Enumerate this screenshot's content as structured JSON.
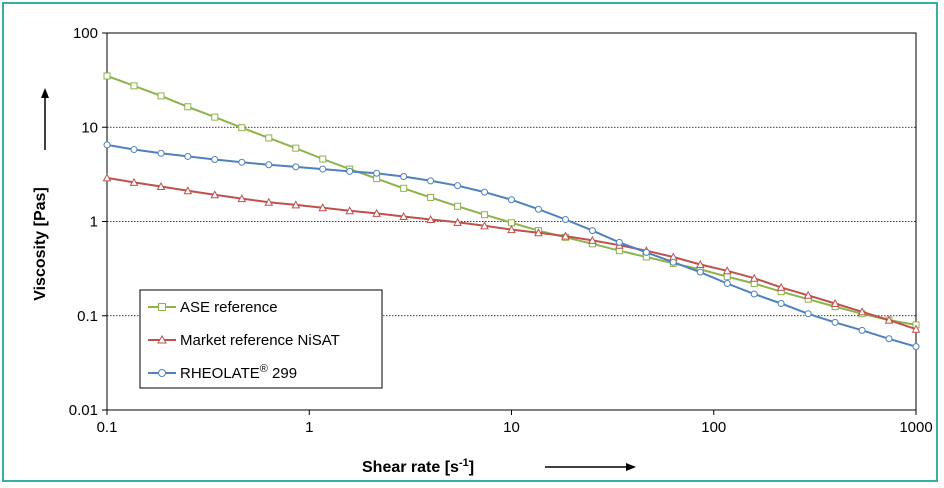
{
  "chart_data": {
    "type": "line",
    "xlabel": "Shear rate [s",
    "xlabel_sup": "-1",
    "xlabel_close": "]",
    "ylabel": "Viscosity [Pas]",
    "x_scale": "log",
    "y_scale": "log",
    "xlim": [
      0.1,
      1000
    ],
    "ylim": [
      0.01,
      100
    ],
    "x_ticks": [
      "0.1",
      "1",
      "10",
      "100",
      "1000"
    ],
    "y_ticks": [
      "100",
      "10",
      "1",
      "0.1",
      "0.01"
    ],
    "grid": "horizontal dotted at 10, 1, 0.1",
    "legend_position": "bottom-left",
    "series": [
      {
        "name": "ASE reference",
        "color": "#8db34b",
        "marker": "square",
        "x": [
          0.1,
          0.136,
          0.185,
          0.251,
          0.341,
          0.464,
          0.631,
          0.858,
          1.166,
          1.585,
          2.154,
          2.929,
          3.981,
          5.412,
          7.356,
          10.0,
          13.59,
          18.48,
          25.12,
          34.15,
          46.42,
          63.1,
          85.77,
          116.6,
          158.5,
          215.4,
          292.9,
          398.1,
          541.2,
          735.6,
          1000
        ],
        "y": [
          35,
          27.5,
          21.5,
          16.5,
          12.8,
          9.9,
          7.7,
          6.0,
          4.6,
          3.6,
          2.85,
          2.25,
          1.8,
          1.45,
          1.18,
          0.97,
          0.8,
          0.68,
          0.58,
          0.49,
          0.42,
          0.36,
          0.31,
          0.26,
          0.22,
          0.18,
          0.15,
          0.125,
          0.105,
          0.09,
          0.08
        ]
      },
      {
        "name": "Market reference NiSAT",
        "color": "#c0504d",
        "marker": "triangle",
        "x": [
          0.1,
          0.136,
          0.185,
          0.251,
          0.341,
          0.464,
          0.631,
          0.858,
          1.166,
          1.585,
          2.154,
          2.929,
          3.981,
          5.412,
          7.356,
          10.0,
          13.59,
          18.48,
          25.12,
          34.15,
          46.42,
          63.1,
          85.77,
          116.6,
          158.5,
          215.4,
          292.9,
          398.1,
          541.2,
          735.6,
          1000
        ],
        "y": [
          2.9,
          2.6,
          2.35,
          2.12,
          1.92,
          1.75,
          1.6,
          1.5,
          1.4,
          1.3,
          1.22,
          1.13,
          1.05,
          0.98,
          0.9,
          0.82,
          0.76,
          0.7,
          0.63,
          0.56,
          0.49,
          0.42,
          0.35,
          0.3,
          0.25,
          0.2,
          0.165,
          0.135,
          0.11,
          0.09,
          0.072
        ]
      },
      {
        "name": "RHEOLATE® 299",
        "name_main": "RHEOLATE",
        "name_sup": "®",
        "name_rest": " 299",
        "color": "#4f81bd",
        "marker": "circle",
        "x": [
          0.1,
          0.136,
          0.185,
          0.251,
          0.341,
          0.464,
          0.631,
          0.858,
          1.166,
          1.585,
          2.154,
          2.929,
          3.981,
          5.412,
          7.356,
          10.0,
          13.59,
          18.48,
          25.12,
          34.15,
          46.42,
          63.1,
          85.77,
          116.6,
          158.5,
          215.4,
          292.9,
          398.1,
          541.2,
          735.6,
          1000
        ],
        "y": [
          6.5,
          5.8,
          5.3,
          4.9,
          4.55,
          4.25,
          4.0,
          3.8,
          3.6,
          3.4,
          3.25,
          3.0,
          2.7,
          2.4,
          2.05,
          1.7,
          1.35,
          1.05,
          0.8,
          0.6,
          0.47,
          0.37,
          0.29,
          0.22,
          0.17,
          0.135,
          0.105,
          0.085,
          0.07,
          0.057,
          0.047
        ]
      }
    ]
  }
}
